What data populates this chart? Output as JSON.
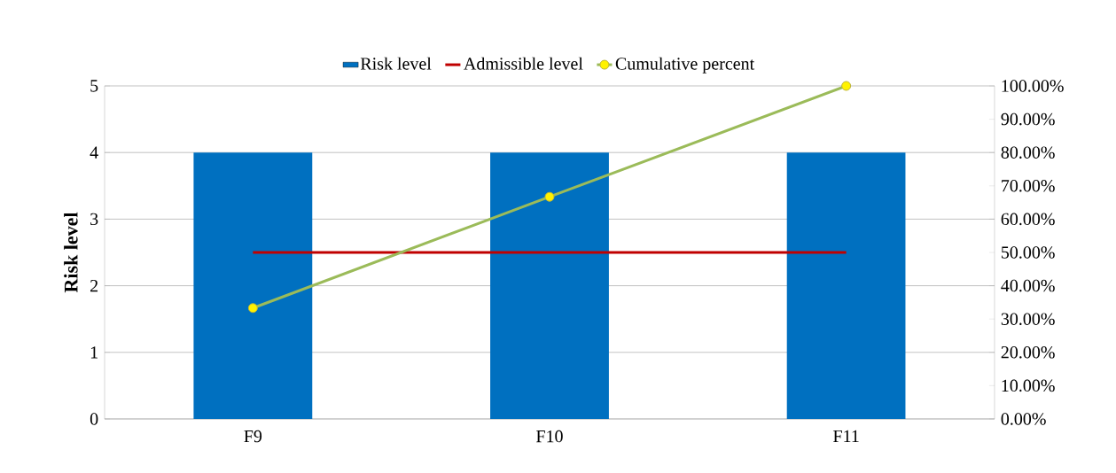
{
  "chart_data": {
    "type": "bar",
    "ylabel": "Risk level",
    "categories": [
      "F9",
      "F10",
      "F11"
    ],
    "series": [
      {
        "name": "Risk level",
        "color": "#0070c0",
        "values": [
          4,
          4,
          4
        ]
      },
      {
        "name": "Admissible level",
        "type": "line",
        "color": "#c00000",
        "values": [
          2.5,
          2.5,
          2.5
        ],
        "marker": "none"
      },
      {
        "name": "Cumulative percent",
        "type": "line",
        "color": "#9bbb59",
        "values": [
          33.3,
          66.7,
          100
        ],
        "axis": "y2",
        "marker": "circle"
      }
    ],
    "ylim": [
      0,
      5
    ],
    "yticks": [
      0,
      1,
      2,
      3,
      4,
      5
    ],
    "y2lim": [
      0,
      100
    ],
    "y2ticks": [
      {
        "value": 0,
        "label": "0.00%"
      },
      {
        "value": 10,
        "label": "10.00%"
      },
      {
        "value": 20,
        "label": "20.00%"
      },
      {
        "value": 30,
        "label": "30.00%"
      },
      {
        "value": 40,
        "label": "40.00%"
      },
      {
        "value": 50,
        "label": "50.00%"
      },
      {
        "value": 60,
        "label": "60.00%"
      },
      {
        "value": 70,
        "label": "70.00%"
      },
      {
        "value": 80,
        "label": "80.00%"
      },
      {
        "value": 90,
        "label": "90.00%"
      },
      {
        "value": 100,
        "label": "100.00%"
      }
    ],
    "grid": "y",
    "legend": "top"
  }
}
